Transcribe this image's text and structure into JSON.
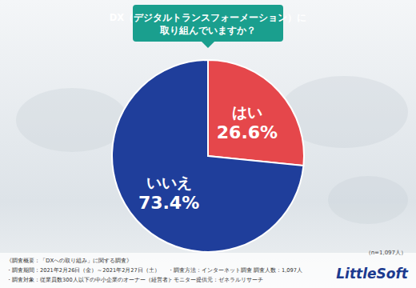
{
  "chart_data": {
    "type": "pie",
    "title": "DX（デジタルトランスフォーメーション）に\n取り組んでいますか？",
    "categories": [
      "はい",
      "いいえ"
    ],
    "values": [
      26.6,
      73.4
    ],
    "value_labels": [
      "26.6%",
      "73.4%"
    ],
    "colors": [
      "#e5474b",
      "#1f3e9b"
    ],
    "data_labels": true,
    "annotations": [
      "（n=1,097人）",
      "《調査概要：「DXへの取り組み」に関する調査》",
      "・調査期間：2021年2月26日（金）～2021年2月27日（土）",
      "・調査方法：インターネット調査",
      "・調査人数：1,097人",
      "・調査対象：従業員数300人以下の中小企業のオーナー（経営者）",
      "・モニター提供元：ゼネラルリサーチ",
      "LittleSoft"
    ]
  }
}
